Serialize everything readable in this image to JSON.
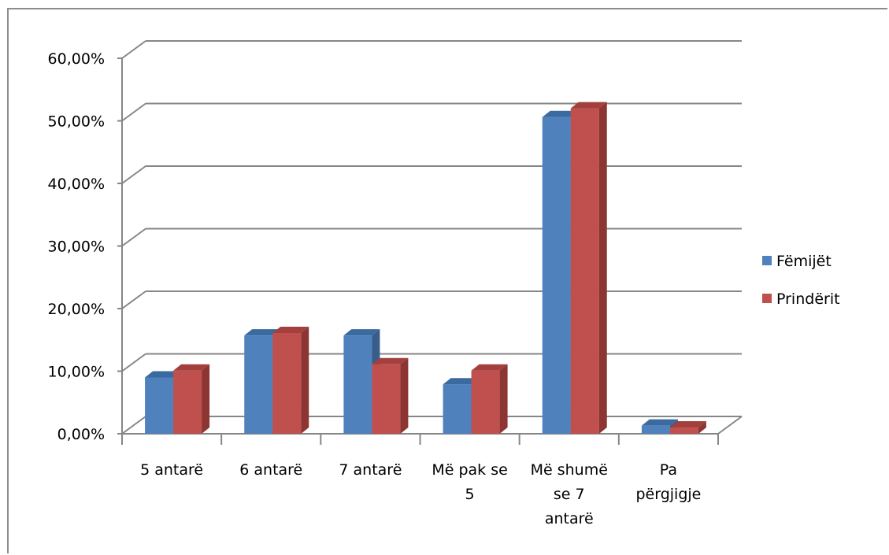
{
  "chart_data": {
    "type": "bar",
    "style": "3d-clustered-column",
    "categories": [
      [
        "5 antarë"
      ],
      [
        "6 antarë"
      ],
      [
        "7 antarë"
      ],
      [
        "Më pak se",
        "5"
      ],
      [
        "Më shumë",
        "se 7",
        "antarë"
      ],
      [
        "Pa",
        "përgjigje"
      ]
    ],
    "series": [
      {
        "name": "Fëmijët",
        "color": "#4f81bd",
        "top": "#3b6aa0",
        "side": "#385d8a",
        "values": [
          9.0,
          15.7,
          15.7,
          7.9,
          50.6,
          1.3
        ]
      },
      {
        "name": "Prindërit",
        "color": "#c0504d",
        "top": "#a3403d",
        "side": "#8c3532",
        "values": [
          10.1,
          16.1,
          11.1,
          10.1,
          52.0,
          1.0
        ]
      }
    ],
    "yticks": [
      "0,00%",
      "10,00%",
      "20,00%",
      "30,00%",
      "40,00%",
      "50,00%",
      "60,00%"
    ],
    "ylim": [
      0,
      60
    ],
    "legend": "right",
    "grid": true
  }
}
